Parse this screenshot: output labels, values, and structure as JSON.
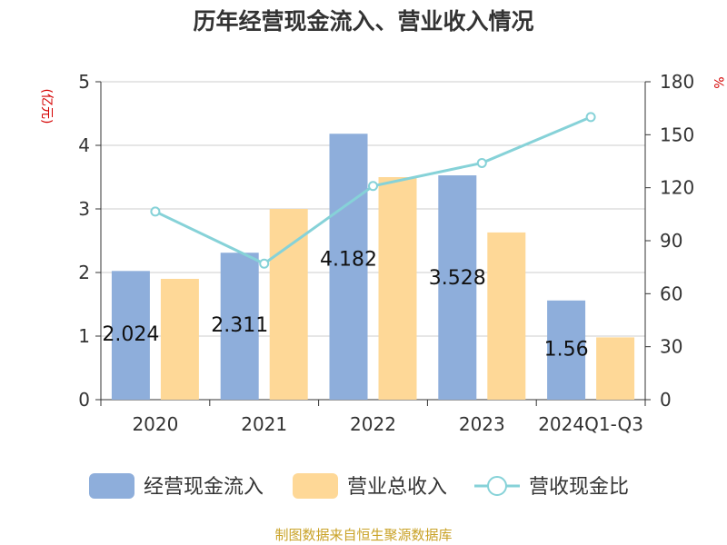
{
  "title": "历年经营现金流入、营业收入情况",
  "footer": "制图数据来自恒生聚源数据库",
  "chart_data": {
    "type": "bar",
    "title": "历年经营现金流入、营业收入情况",
    "categories": [
      "2020",
      "2021",
      "2022",
      "2023",
      "2024Q1-Q3"
    ],
    "series": [
      {
        "name": "经营现金流入",
        "type": "bar",
        "axis": "left",
        "color": "#8eaedb",
        "values": [
          2.024,
          2.311,
          4.182,
          3.528,
          1.56
        ],
        "labels": [
          "2.024",
          "2.311",
          "4.182",
          "3.528",
          "1.56"
        ]
      },
      {
        "name": "营业总收入",
        "type": "bar",
        "axis": "left",
        "color": "#fed897",
        "values": [
          1.9,
          3.0,
          3.5,
          2.63,
          0.98
        ]
      },
      {
        "name": "营收现金比",
        "type": "line",
        "axis": "right",
        "color": "#86d2d8",
        "values": [
          106.5,
          77,
          121,
          134,
          160
        ]
      }
    ],
    "y_left": {
      "label": "(亿元)",
      "min": 0,
      "max": 5,
      "ticks": [
        "0",
        "1",
        "2",
        "3",
        "4",
        "5"
      ]
    },
    "y_right": {
      "label": "%",
      "min": 0,
      "max": 180,
      "ticks": [
        "0",
        "30",
        "60",
        "90",
        "120",
        "150",
        "180"
      ]
    },
    "grid": true,
    "legend_position": "bottom"
  }
}
